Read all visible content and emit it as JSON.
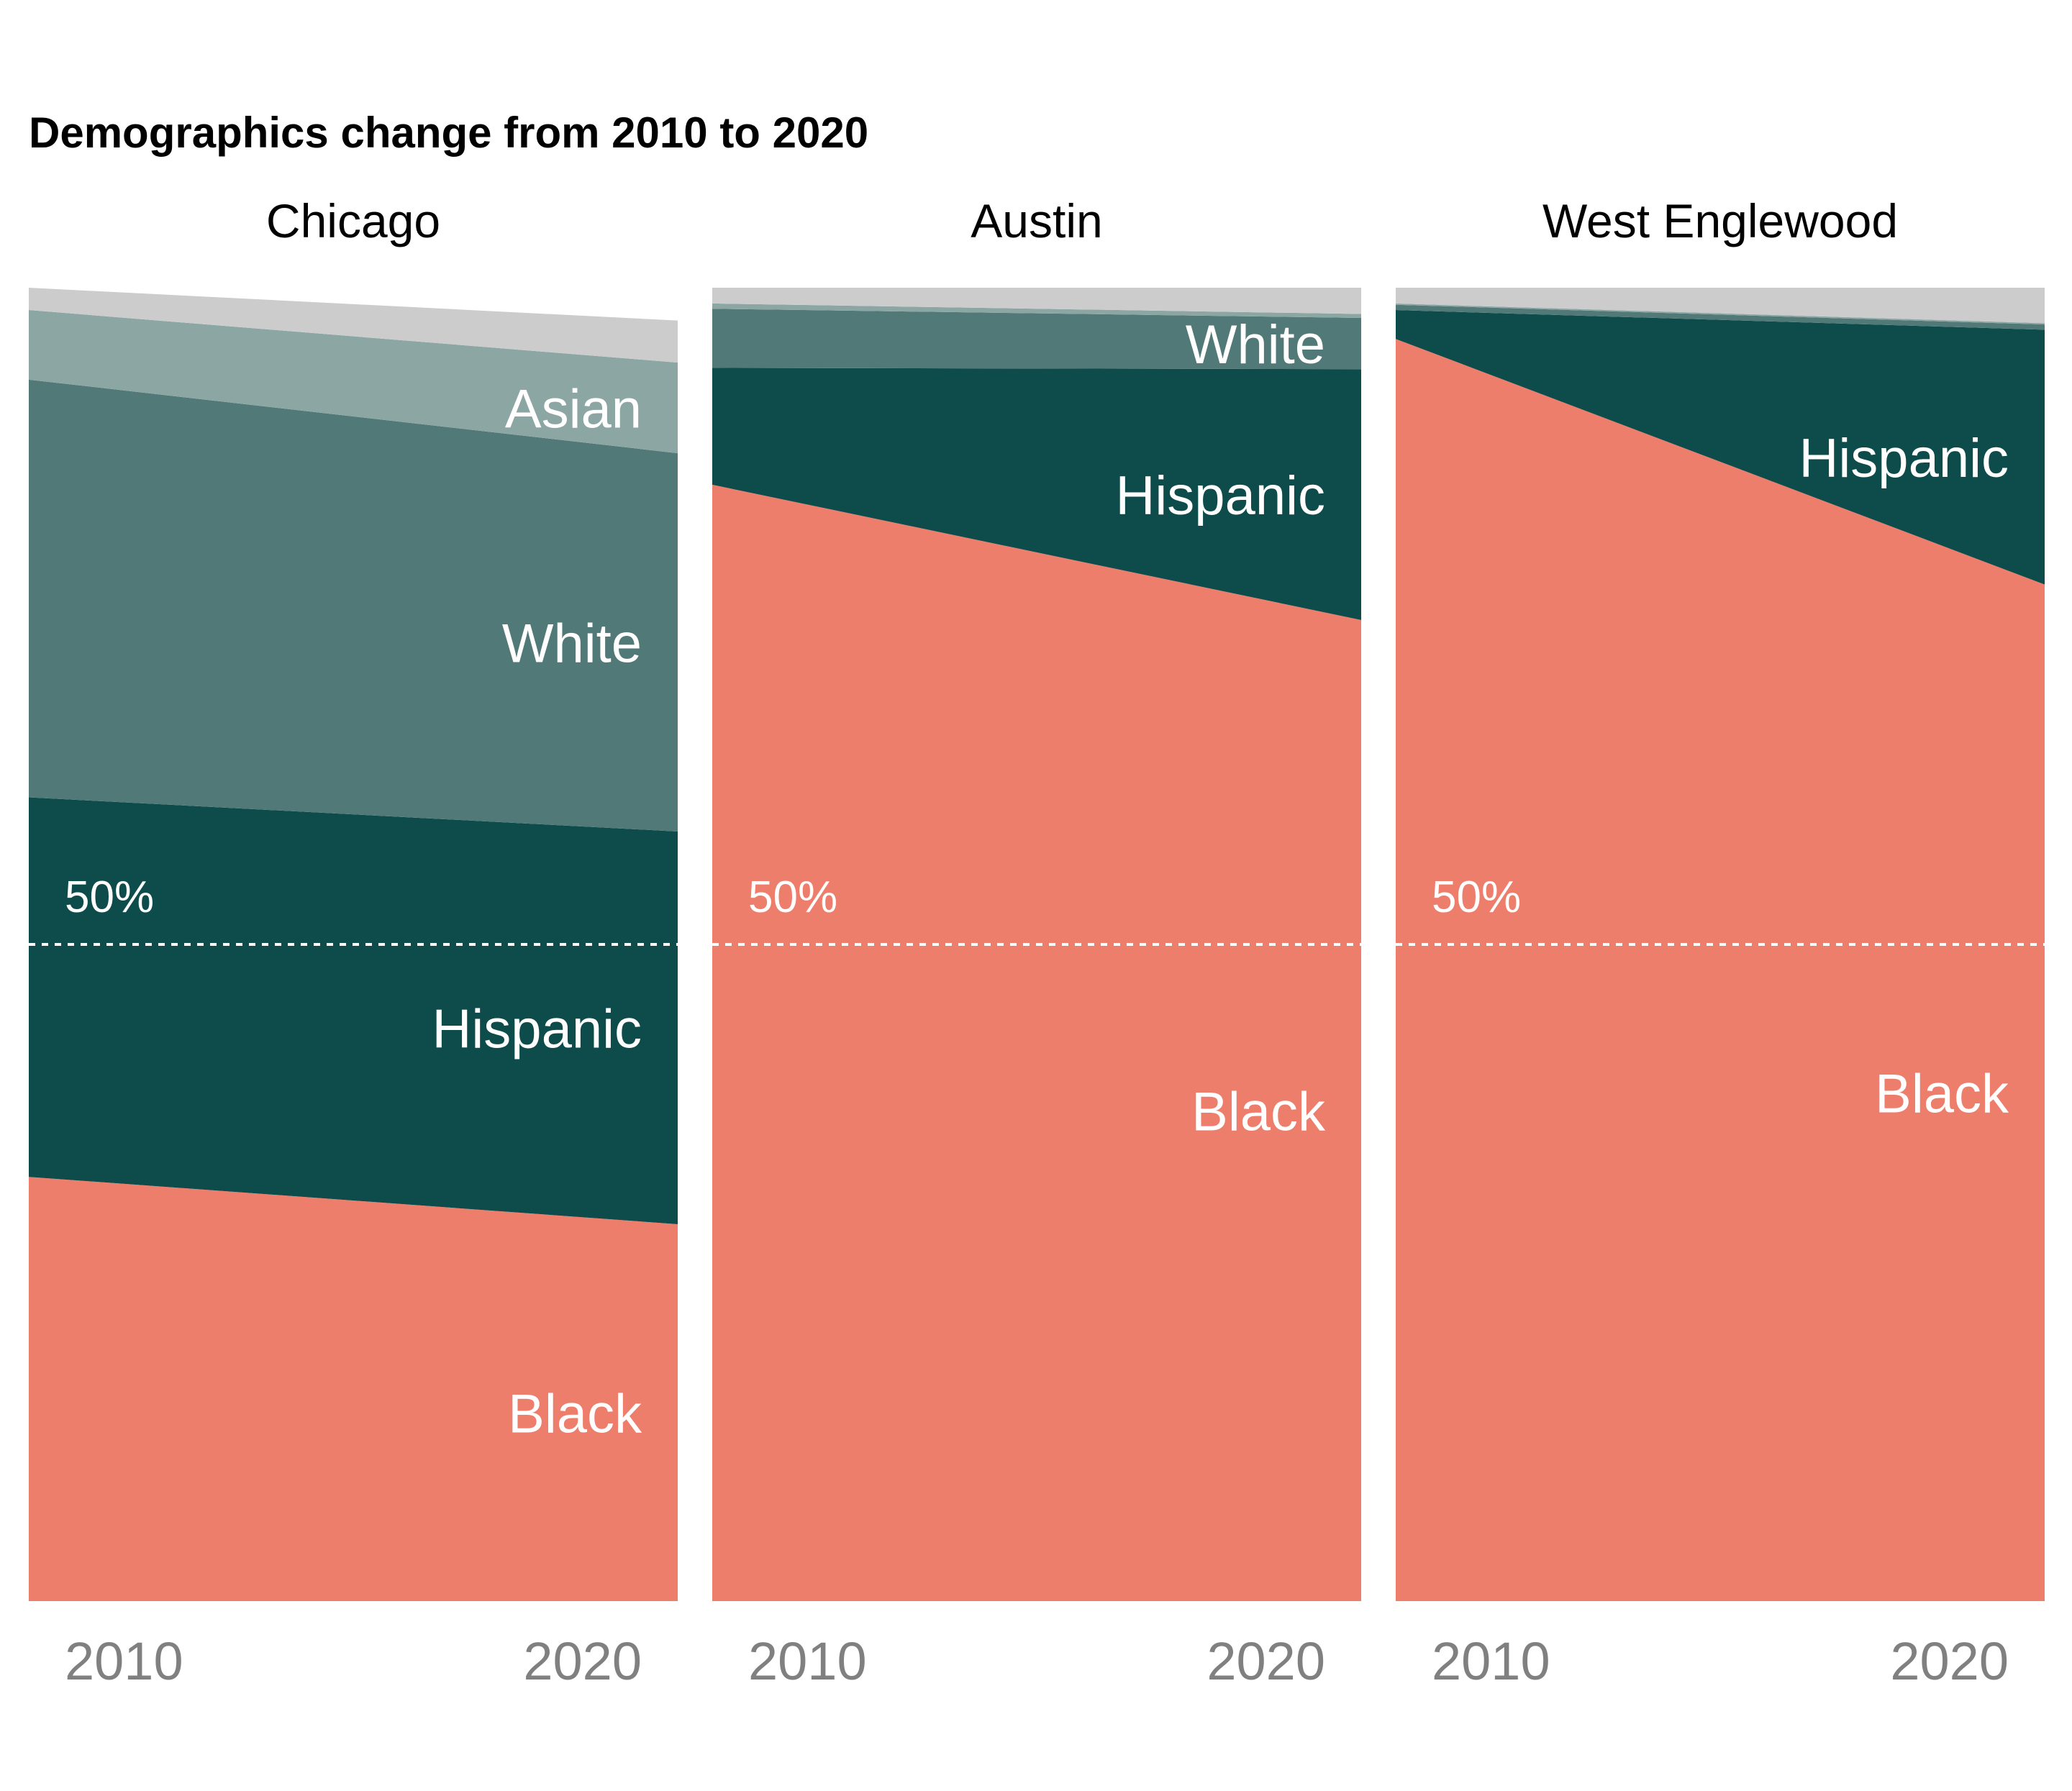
{
  "chart_data": {
    "type": "area",
    "title": "Demographics change from 2010 to 2020",
    "x": [
      "2010",
      "2020"
    ],
    "ylim": [
      0,
      100
    ],
    "reference_line": {
      "value": 50,
      "label": "50%"
    },
    "colors": {
      "Black": "#ED7E6C",
      "Hispanic": "#0E4B4B",
      "White": "#517977",
      "Asian": "#8CA6A3",
      "Other": "#CCCCCC"
    },
    "panels": [
      {
        "name": "Chicago",
        "series": [
          {
            "name": "Black",
            "label": "Black",
            "values": [
              32.3,
              28.7
            ]
          },
          {
            "name": "Hispanic",
            "label": "Hispanic",
            "values": [
              28.9,
              29.9
            ]
          },
          {
            "name": "White",
            "label": "White",
            "values": [
              31.8,
              28.8
            ]
          },
          {
            "name": "Asian",
            "label": "Asian",
            "values": [
              5.3,
              6.9
            ]
          },
          {
            "name": "Other",
            "label": "",
            "values": [
              1.7,
              3.2
            ]
          }
        ]
      },
      {
        "name": "Austin",
        "series": [
          {
            "name": "Black",
            "label": "Black",
            "values": [
              85.0,
              74.7
            ]
          },
          {
            "name": "Hispanic",
            "label": "Hispanic",
            "values": [
              8.9,
              19.1
            ]
          },
          {
            "name": "White",
            "label": "White",
            "values": [
              4.5,
              3.9
            ]
          },
          {
            "name": "Asian",
            "label": "",
            "values": [
              0.4,
              0.3
            ]
          },
          {
            "name": "Other",
            "label": "",
            "values": [
              1.2,
              2.0
            ]
          }
        ]
      },
      {
        "name": "West Englewood",
        "series": [
          {
            "name": "Black",
            "label": "Black",
            "values": [
              96.1,
              77.4
            ]
          },
          {
            "name": "Hispanic",
            "label": "Hispanic",
            "values": [
              2.2,
              19.4
            ]
          },
          {
            "name": "White",
            "label": "",
            "values": [
              0.4,
              0.4
            ]
          },
          {
            "name": "Asian",
            "label": "",
            "values": [
              0.1,
              0.1
            ]
          },
          {
            "name": "Other",
            "label": "",
            "values": [
              1.2,
              2.7
            ]
          }
        ]
      }
    ]
  }
}
